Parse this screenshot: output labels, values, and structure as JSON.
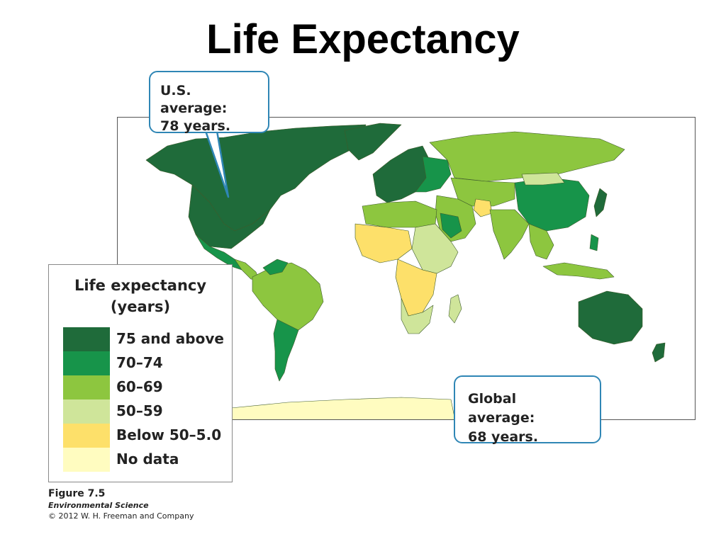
{
  "title": "Life Expectancy",
  "callouts": {
    "us_line1": "U.S. average:",
    "us_line2": "78 years.",
    "global_line1": "Global average:",
    "global_line2": "68 years."
  },
  "legend": {
    "title_line1": "Life expectancy",
    "title_line2": "(years)",
    "items": [
      {
        "label": "75 and above",
        "color": "#1f6b3a"
      },
      {
        "label": "70–74",
        "color": "#17944a"
      },
      {
        "label": "60–69",
        "color": "#8dc63f"
      },
      {
        "label": "50–59",
        "color": "#cfe59a"
      },
      {
        "label": "Below 50–5.0",
        "color": "#fde06a"
      },
      {
        "label": "No data",
        "color": "#fffcc0"
      }
    ]
  },
  "credit": {
    "figure": "Figure 7.5",
    "book": "Environmental Science",
    "copyright": "© 2012 W. H. Freeman and Company"
  },
  "map_colors": {
    "tier_75_plus": "#1f6b3a",
    "tier_70_74": "#17944a",
    "tier_60_69": "#8dc63f",
    "tier_50_59": "#cfe59a",
    "tier_below_50": "#fde06a",
    "no_data": "#fffcc0",
    "border": "#3d5a2a",
    "callout_border": "#2f86b5"
  }
}
